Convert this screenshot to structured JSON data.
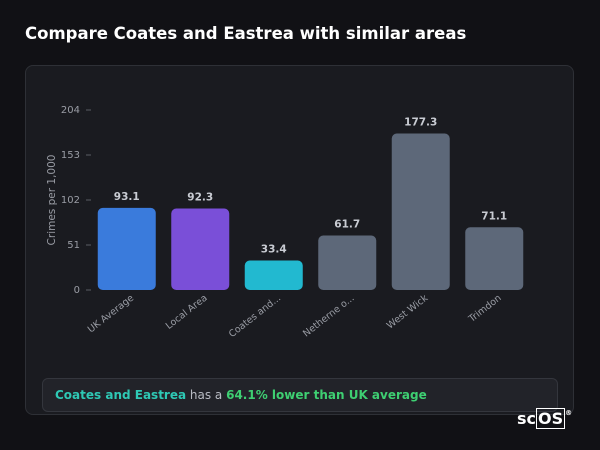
{
  "chart_data": {
    "type": "bar",
    "title": "Compare Coates and Eastrea with similar areas",
    "ylabel": "Crimes per 1,000",
    "categories": [
      "UK Average",
      "Local Area",
      "Coates and...",
      "Netherne o...",
      "West Wick",
      "Trimdon"
    ],
    "values": [
      93.1,
      92.3,
      33.4,
      61.7,
      177.3,
      71.1
    ],
    "colors": [
      "#3a7bdc",
      "#7a4fd8",
      "#22b9d0",
      "#5d6879",
      "#5d6879",
      "#5d6879"
    ],
    "ylim": [
      0,
      204
    ],
    "yticks": [
      0,
      51,
      102,
      153,
      204
    ]
  },
  "note": {
    "area": "Coates and Eastrea",
    "connector": " has a ",
    "highlight": "64.1% lower than UK average"
  },
  "logo": {
    "left": "sc",
    "boxed": "OS",
    "mark": "®"
  }
}
